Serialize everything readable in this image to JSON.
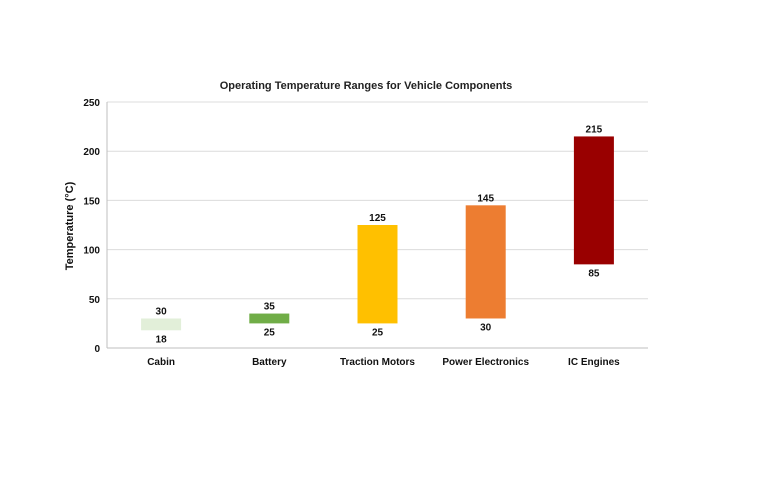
{
  "chart_data": {
    "type": "bar",
    "subtype": "floating-range",
    "title": "Operating Temperature Ranges for Vehicle Components",
    "xlabel": "",
    "ylabel": "Temperature (°C)",
    "ylim": [
      0,
      250
    ],
    "yticks": [
      0,
      50,
      100,
      150,
      200,
      250
    ],
    "grid": true,
    "legend": "none",
    "categories": [
      "Cabin",
      "Battery",
      "Traction Motors",
      "Power Electronics",
      "IC Engines"
    ],
    "ranges": [
      {
        "category": "Cabin",
        "low": 18,
        "high": 30,
        "color": "#e2efd9"
      },
      {
        "category": "Battery",
        "low": 25,
        "high": 35,
        "color": "#70ad47"
      },
      {
        "category": "Traction Motors",
        "low": 25,
        "high": 125,
        "color": "#ffc000"
      },
      {
        "category": "Power Electronics",
        "low": 30,
        "high": 145,
        "color": "#ed7d31"
      },
      {
        "category": "IC Engines",
        "low": 85,
        "high": 215,
        "color": "#990000"
      }
    ]
  }
}
